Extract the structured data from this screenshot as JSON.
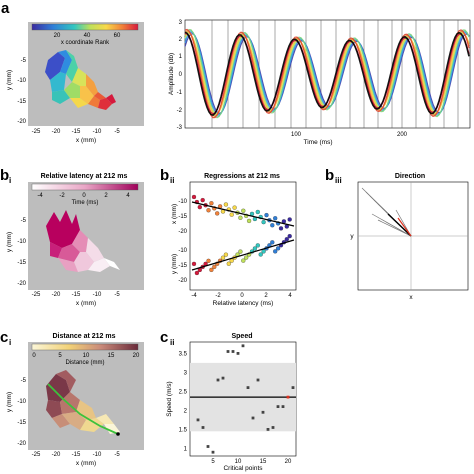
{
  "panel_labels": {
    "a": "a",
    "bi": "b",
    "bi_sub": "i",
    "bii": "b",
    "bii_sub": "ii",
    "biii": "b",
    "biii_sub": "iii",
    "ci": "c",
    "ci_sub": "i",
    "cii": "c",
    "cii_sub": "ii"
  },
  "colors": {
    "gray_bg": "#bdbdbd",
    "speed_band": "#e3e3e3",
    "accent_green": "#3cc23c",
    "accent_red": "#e0301e"
  },
  "a_map": {
    "colorbar_ticks": [
      "20",
      "40",
      "60"
    ],
    "colorbar_label": "x coordinate Rank",
    "xticks": [
      "-25",
      "-20",
      "-15",
      "-10",
      "-5"
    ],
    "yticks": [
      "-5",
      "-10",
      "-15",
      "-20"
    ],
    "xlabel": "x (mm)",
    "ylabel": "y (mm)"
  },
  "a_wave": {
    "yticks": [
      "3",
      "2",
      "1",
      "0",
      "-1",
      "-2",
      "-3"
    ],
    "xticks": [
      "100",
      "200"
    ],
    "ylabel": "Amplitude (db)",
    "xlabel": "Time (ms)"
  },
  "bi": {
    "title": "Relative latency at 212 ms",
    "colorbar_ticks": [
      "-4",
      "-2",
      "0",
      "2",
      "4"
    ],
    "colorbar_label": "Time (ms)",
    "xticks": [
      "-25",
      "-20",
      "-15",
      "-10",
      "-5"
    ],
    "yticks": [
      "-5",
      "-10",
      "-15",
      "-20"
    ],
    "xlabel": "x (mm)",
    "ylabel": "y (mm)"
  },
  "bii": {
    "title": "Regressions at 212 ms",
    "top_yticks": [
      "-10",
      "-15",
      "-20"
    ],
    "bottom_yticks": [
      "-10",
      "-15",
      "-20"
    ],
    "top_ylabel": "x (mm)",
    "bottom_ylabel": "y (mm)",
    "xticks": [
      "-4",
      "-2",
      "0",
      "2",
      "4"
    ],
    "xlabel": "Relative latency (ms)"
  },
  "biii": {
    "title": "Direction",
    "xlabel": "x",
    "ylabel": "y"
  },
  "ci": {
    "title": "Distance at 212 ms",
    "colorbar_ticks": [
      "0",
      "5",
      "10",
      "15",
      "20"
    ],
    "colorbar_label": "Distance (mm)",
    "xticks": [
      "-25",
      "-20",
      "-15",
      "-10",
      "-5"
    ],
    "yticks": [
      "-5",
      "-10",
      "-15",
      "-20"
    ],
    "xlabel": "x (mm)",
    "ylabel": "y (mm)"
  },
  "chart_data": [
    {
      "type": "scatter",
      "title": "Speed",
      "xlabel": "Critical points",
      "ylabel": "Speed (m/s)",
      "xlim": [
        1,
        21
      ],
      "ylim": [
        0.8,
        3.8
      ],
      "xticks": [
        "5",
        "10",
        "15",
        "20"
      ],
      "yticks": [
        "3.5",
        "3",
        "2.5",
        "2",
        "1.5",
        "1"
      ],
      "mean": 2.35,
      "band": [
        1.45,
        3.25
      ],
      "points": [
        {
          "x": 2,
          "y": 1.75
        },
        {
          "x": 3,
          "y": 1.55
        },
        {
          "x": 4,
          "y": 1.05
        },
        {
          "x": 5,
          "y": 0.9
        },
        {
          "x": 6,
          "y": 2.8
        },
        {
          "x": 7,
          "y": 2.85
        },
        {
          "x": 8,
          "y": 3.55
        },
        {
          "x": 9,
          "y": 3.55
        },
        {
          "x": 10,
          "y": 3.5
        },
        {
          "x": 11,
          "y": 3.7
        },
        {
          "x": 12,
          "y": 2.6
        },
        {
          "x": 13,
          "y": 1.8
        },
        {
          "x": 14,
          "y": 2.8
        },
        {
          "x": 15,
          "y": 1.95
        },
        {
          "x": 16,
          "y": 1.5
        },
        {
          "x": 17,
          "y": 1.55
        },
        {
          "x": 18,
          "y": 2.1
        },
        {
          "x": 19,
          "y": 2.1
        },
        {
          "x": 20,
          "y": 2.35
        },
        {
          "x": 21,
          "y": 2.6
        }
      ]
    }
  ]
}
